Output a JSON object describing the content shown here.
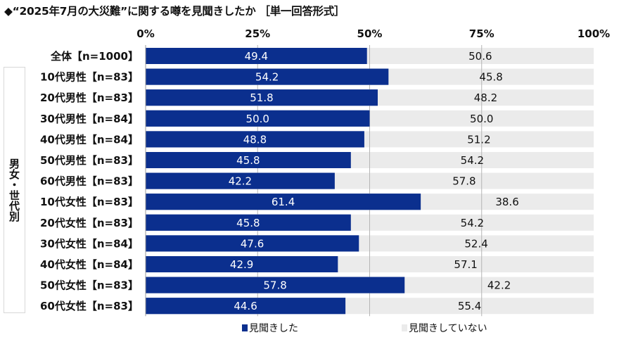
{
  "chart_data": {
    "type": "bar",
    "orientation": "horizontal",
    "stacked": true,
    "title": "◆“2025年7月の大災難”に関する噂を見聞きしたか ［単一回答形式］",
    "group_label": "男女・世代別",
    "categories": [
      "全体【n=1000】",
      "10代男性【n=83】",
      "20代男性【n=83】",
      "30代男性【n=84】",
      "40代男性【n=84】",
      "50代男性【n=83】",
      "60代男性【n=83】",
      "10代女性【n=83】",
      "20代女性【n=83】",
      "30代女性【n=84】",
      "40代女性【n=84】",
      "50代女性【n=83】",
      "60代女性【n=83】"
    ],
    "series": [
      {
        "name": "見聞きした",
        "color": "#0b2f8e",
        "values": [
          49.4,
          54.2,
          51.8,
          50.0,
          48.8,
          45.8,
          42.2,
          61.4,
          45.8,
          47.6,
          42.9,
          57.8,
          44.6
        ]
      },
      {
        "name": "見聞きしていない",
        "color": "#ebebeb",
        "values": [
          50.6,
          45.8,
          48.2,
          50.0,
          51.2,
          54.2,
          57.8,
          38.6,
          54.2,
          52.4,
          57.1,
          42.2,
          55.4
        ]
      }
    ],
    "xlim": [
      0,
      100
    ],
    "xticks": [
      "0%",
      "25%",
      "50%",
      "75%",
      "100%"
    ],
    "grid": true,
    "legend": "bottom"
  }
}
